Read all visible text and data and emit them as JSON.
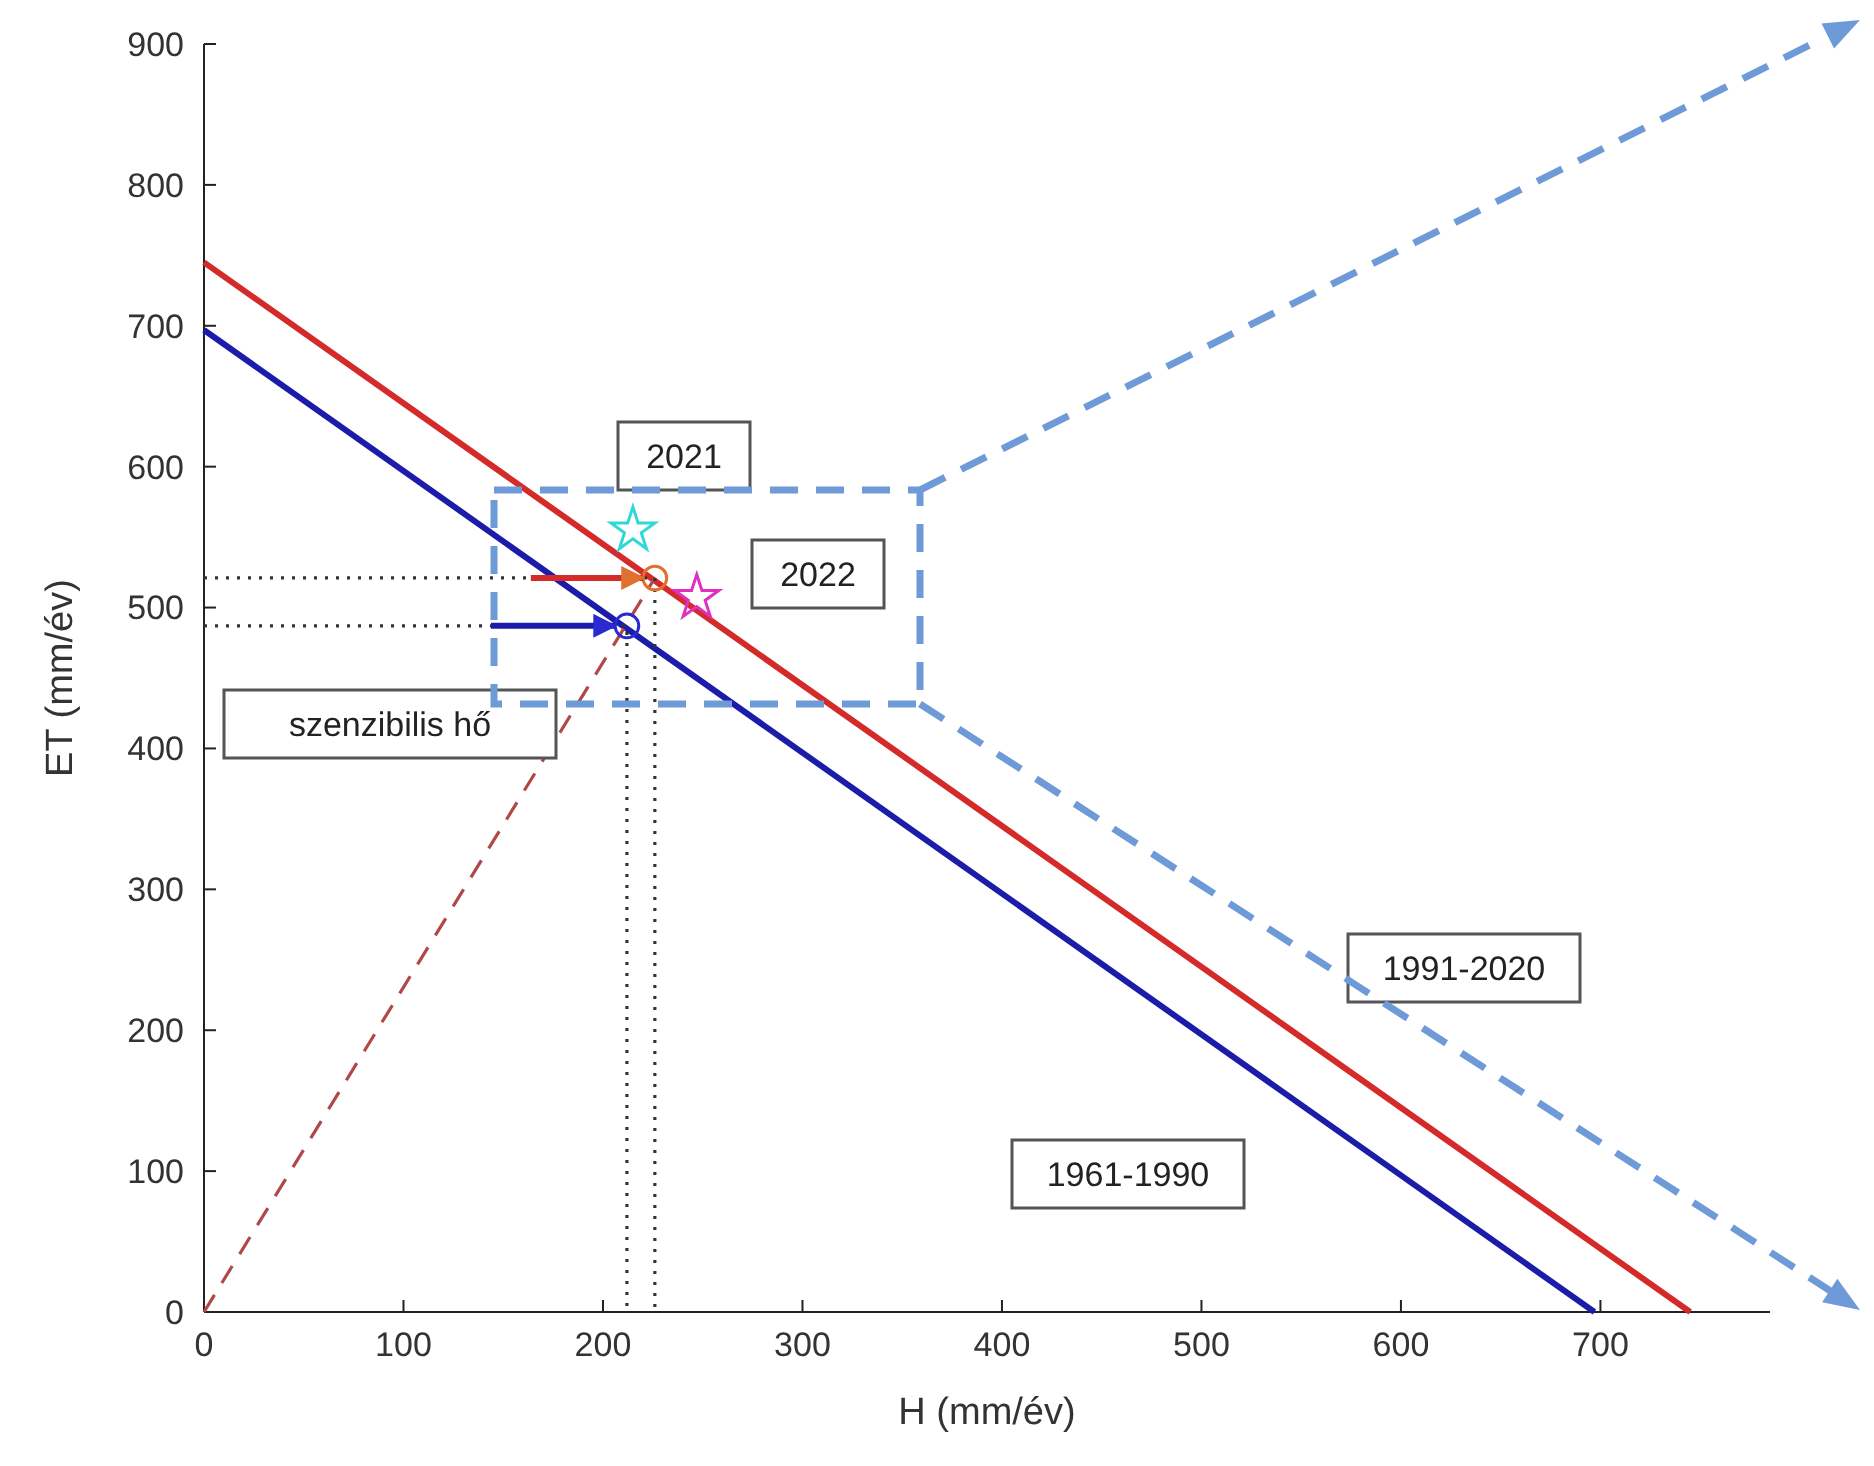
{
  "chart_data": {
    "type": "line",
    "xlabel": "H (mm/év)",
    "ylabel": "ET (mm/év)",
    "xlim": [
      0,
      785
    ],
    "ylim": [
      0,
      900
    ],
    "xticks": [
      0,
      100,
      200,
      300,
      400,
      500,
      600,
      700
    ],
    "yticks": [
      0,
      100,
      200,
      300,
      400,
      500,
      600,
      700,
      800,
      900
    ],
    "series": [
      {
        "color": "#d42a2a",
        "x": [
          0,
          745
        ],
        "values": [
          745,
          0
        ],
        "line_style": "solid"
      },
      {
        "color": "#1c1caa",
        "x": [
          0,
          697
        ],
        "values": [
          697,
          0
        ],
        "line_style": "solid"
      },
      {
        "type": "line",
        "color": "#b04848",
        "x": [
          0,
          226
        ],
        "values": [
          0,
          521
        ],
        "line_style": "dashed"
      },
      {
        "type": "line",
        "color": "#333333",
        "x": [
          0,
          226,
          226
        ],
        "values": [
          521,
          521,
          0
        ],
        "line_style": "dotted"
      },
      {
        "type": "line",
        "color": "#333333",
        "x": [
          0,
          212,
          212
        ],
        "values": [
          487,
          487,
          0
        ],
        "line_style": "dotted"
      },
      {
        "type": "scatter",
        "color": "#e07030",
        "x": [
          226
        ],
        "values": [
          521
        ],
        "marker": "circle"
      },
      {
        "type": "scatter",
        "color": "#2a2ad0",
        "x": [
          212
        ],
        "values": [
          487
        ],
        "marker": "circle"
      },
      {
        "type": "scatter",
        "color": "#30d8d8",
        "x": [
          215
        ],
        "values": [
          555
        ],
        "marker": "star"
      },
      {
        "type": "scatter",
        "color": "#e030c0",
        "x": [
          247
        ],
        "values": [
          507
        ],
        "marker": "star"
      }
    ],
    "annotations": [
      "2021",
      "2022",
      "szenzibilis hő",
      "1991-2020",
      "1961-1990"
    ]
  }
}
